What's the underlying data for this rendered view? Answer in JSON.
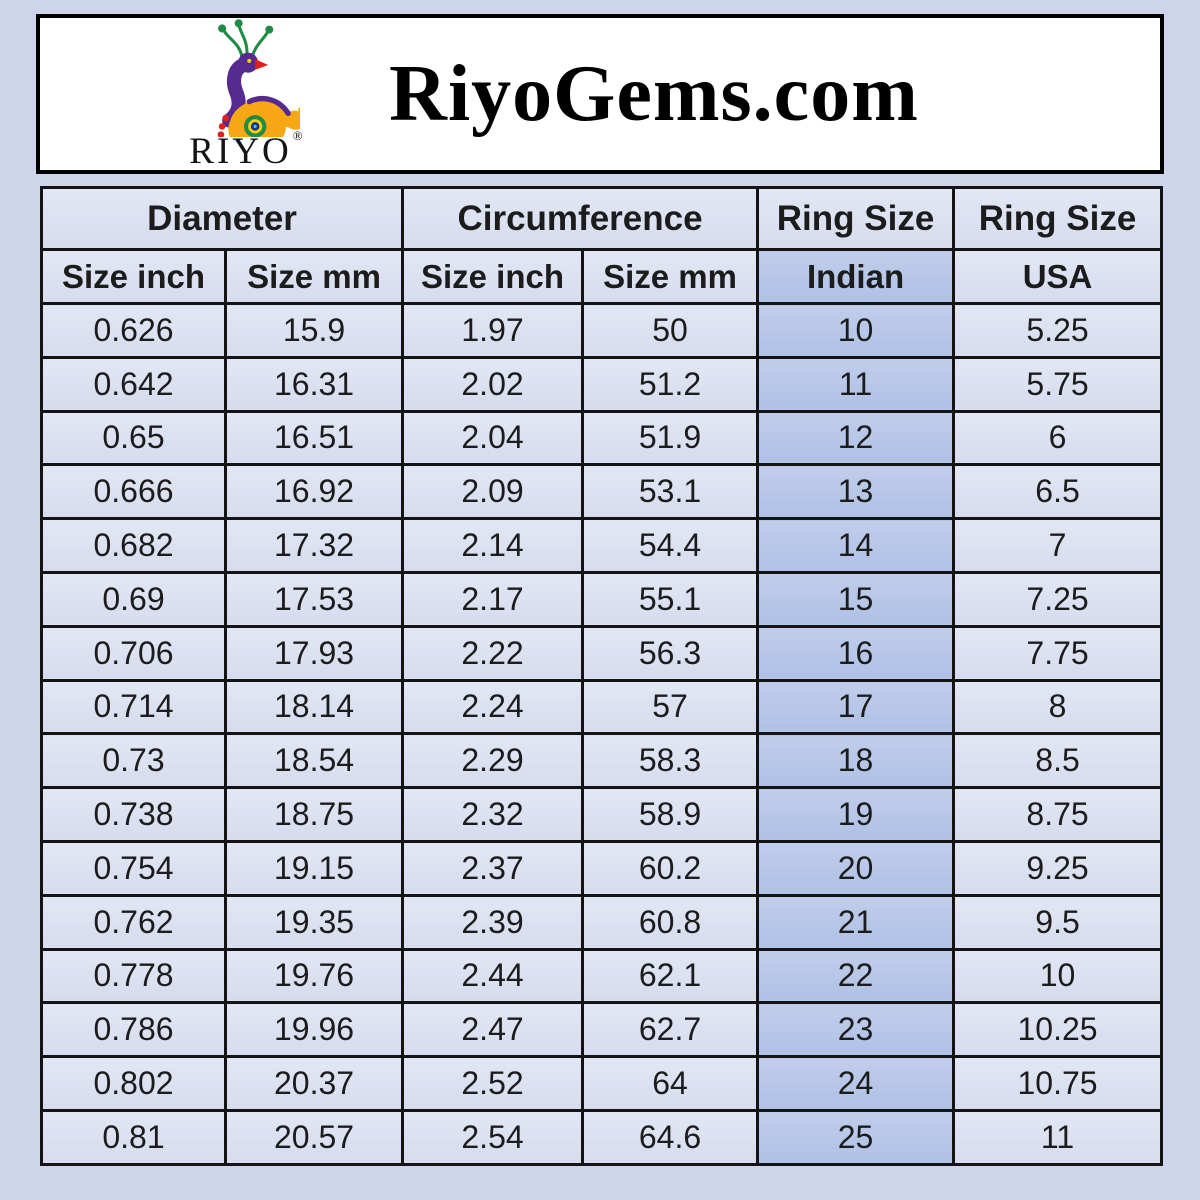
{
  "brand": {
    "title": "RiyoGems.com",
    "logo_text": "RIYO",
    "registered_mark": "®"
  },
  "chart_data": {
    "type": "table",
    "group_headers": [
      {
        "label": "Diameter",
        "span": 2
      },
      {
        "label": "Circumference",
        "span": 2
      },
      {
        "label": "Ring Size",
        "span": 1
      },
      {
        "label": "Ring Size",
        "span": 1
      }
    ],
    "columns": [
      "Size inch",
      "Size mm",
      "Size inch",
      "Size mm",
      "Indian",
      "USA"
    ],
    "highlighted_column_index": 4,
    "highlighted_column_name": "Indian",
    "rows": [
      [
        "0.626",
        "15.9",
        "1.97",
        "50",
        "10",
        "5.25"
      ],
      [
        "0.642",
        "16.31",
        "2.02",
        "51.2",
        "11",
        "5.75"
      ],
      [
        "0.65",
        "16.51",
        "2.04",
        "51.9",
        "12",
        "6"
      ],
      [
        "0.666",
        "16.92",
        "2.09",
        "53.1",
        "13",
        "6.5"
      ],
      [
        "0.682",
        "17.32",
        "2.14",
        "54.4",
        "14",
        "7"
      ],
      [
        "0.69",
        "17.53",
        "2.17",
        "55.1",
        "15",
        "7.25"
      ],
      [
        "0.706",
        "17.93",
        "2.22",
        "56.3",
        "16",
        "7.75"
      ],
      [
        "0.714",
        "18.14",
        "2.24",
        "57",
        "17",
        "8"
      ],
      [
        "0.73",
        "18.54",
        "2.29",
        "58.3",
        "18",
        "8.5"
      ],
      [
        "0.738",
        "18.75",
        "2.32",
        "58.9",
        "19",
        "8.75"
      ],
      [
        "0.754",
        "19.15",
        "2.37",
        "60.2",
        "20",
        "9.25"
      ],
      [
        "0.762",
        "19.35",
        "2.39",
        "60.8",
        "21",
        "9.5"
      ],
      [
        "0.778",
        "19.76",
        "2.44",
        "62.1",
        "22",
        "10"
      ],
      [
        "0.786",
        "19.96",
        "2.47",
        "62.7",
        "23",
        "10.25"
      ],
      [
        "0.802",
        "20.37",
        "2.52",
        "64",
        "24",
        "10.75"
      ],
      [
        "0.81",
        "20.57",
        "2.54",
        "64.6",
        "25",
        "11"
      ]
    ]
  },
  "style": {
    "page_bg": "#ced4ea",
    "cell_bg": "#dbe1f0",
    "highlight_bg": "#b7c6e8",
    "border_color": "#141414",
    "text_color": "#1c1c1c",
    "header_box_bg": "#ffffff",
    "logo_colors": {
      "purple": "#572a8f",
      "green": "#1f8b45",
      "orange": "#f7a713",
      "red": "#e31e1e",
      "eye_yellow": "#f4d010",
      "eye_navy": "#1a2e8c"
    }
  }
}
